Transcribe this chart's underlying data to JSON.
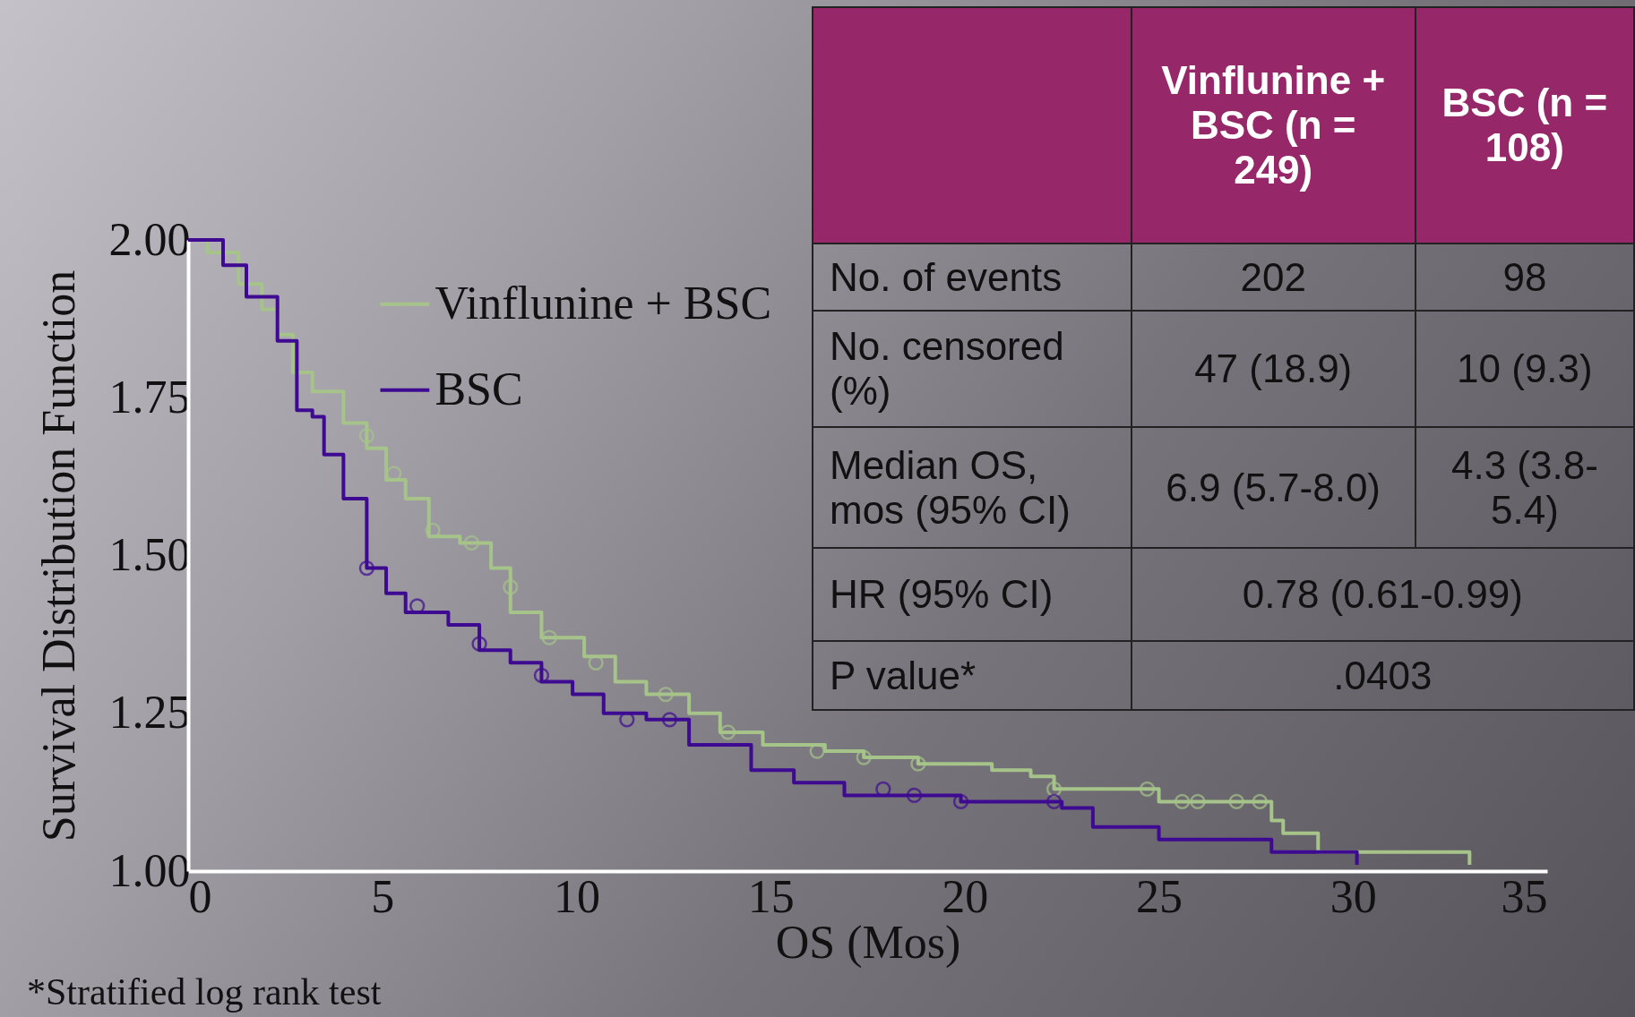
{
  "chart_data": [
    {
      "type": "step",
      "xlabel": "OS (Mos)",
      "ylabel": "Survival Distribution Function",
      "xlim": [
        0,
        35
      ],
      "xticks": [
        0,
        5,
        10,
        15,
        20,
        25,
        30,
        35
      ],
      "ylim": [
        1,
        2
      ],
      "yticks": [
        {
          "value": 1,
          "label": "1.00"
        },
        {
          "value": 1.25,
          "label": "1.25"
        },
        {
          "value": 1.5,
          "label": "1.50"
        },
        {
          "value": 1.75,
          "label": "1.75"
        },
        {
          "value": 2,
          "label": "2.00"
        }
      ],
      "legend": "top left",
      "grid": false,
      "annotations": [
        "*Stratified log rank test"
      ],
      "series": [
        {
          "name": "Vinflunine + BSC",
          "color": "#a6c48a",
          "x": [
            0,
            0.5,
            1.3,
            1.9,
            2.3,
            2.7,
            3.2,
            4,
            4.6,
            5.1,
            5.6,
            6.2,
            7,
            7.8,
            8.3,
            9.1,
            10.2,
            11,
            11.8,
            12.9,
            13.7,
            14.8,
            16.4,
            17.4,
            18.8,
            20.7,
            21.7,
            22.3,
            24.7,
            25,
            27.9,
            28.2,
            29.1,
            33
          ],
          "values": [
            2,
            1.98,
            1.93,
            1.89,
            1.85,
            1.79,
            1.76,
            1.71,
            1.67,
            1.62,
            1.59,
            1.53,
            1.52,
            1.48,
            1.41,
            1.37,
            1.34,
            1.3,
            1.28,
            1.25,
            1.22,
            1.2,
            1.19,
            1.18,
            1.17,
            1.16,
            1.15,
            1.13,
            1.13,
            1.11,
            1.08,
            1.06,
            1.03,
            1.01
          ]
        },
        {
          "name": "BSC",
          "color": "#3d0a91",
          "x": [
            0,
            0.9,
            1.5,
            2.3,
            2.8,
            3.2,
            3.5,
            4,
            4.6,
            5.1,
            5.6,
            6.7,
            7.5,
            8.3,
            9.1,
            9.9,
            10.7,
            11.8,
            12.9,
            14.5,
            15.6,
            16.9,
            19.9,
            22.5,
            23.3,
            25,
            27.9,
            30.1
          ],
          "values": [
            2,
            1.96,
            1.91,
            1.84,
            1.73,
            1.72,
            1.66,
            1.59,
            1.48,
            1.44,
            1.41,
            1.39,
            1.35,
            1.33,
            1.3,
            1.28,
            1.25,
            1.24,
            1.2,
            1.16,
            1.14,
            1.12,
            1.11,
            1.1,
            1.07,
            1.05,
            1.03,
            1.01
          ]
        },
        {
          "type": "scatter",
          "color": "#a6c48a",
          "x": [
            4.6,
            5.3,
            6.3,
            7.3,
            8.3,
            9.3,
            10.5,
            12.3,
            13.9,
            16.2,
            17.4,
            18.8,
            22.3,
            24.7,
            25.6,
            26,
            27,
            27.6
          ],
          "values": [
            1.69,
            1.63,
            1.54,
            1.52,
            1.45,
            1.37,
            1.33,
            1.28,
            1.22,
            1.19,
            1.18,
            1.17,
            1.13,
            1.13,
            1.11,
            1.11,
            1.11,
            1.11
          ]
        },
        {
          "type": "scatter",
          "color": "#3d0a91",
          "x": [
            4.6,
            5.9,
            7.5,
            9.1,
            11.3,
            12.4,
            17.9,
            18.7,
            19.9,
            22.3
          ],
          "values": [
            1.48,
            1.42,
            1.36,
            1.31,
            1.24,
            1.24,
            1.13,
            1.12,
            1.11,
            1.11
          ]
        }
      ]
    },
    {
      "type": "other",
      "annotations": [
        "Vinflunine + BSC (n = 249)",
        "BSC (n = 108)",
        "No. of events",
        "202",
        "98",
        "No. censored (%)",
        "47 (18.9)",
        "10 (9.3)",
        "Median OS, mos (95% CI)",
        "6.9 (5.7-8.0)",
        "4.3 (3.8-5.4)",
        "HR (95% CI)",
        "0.78 (0.61-0.99)",
        "P value*",
        ".0403"
      ]
    }
  ]
}
